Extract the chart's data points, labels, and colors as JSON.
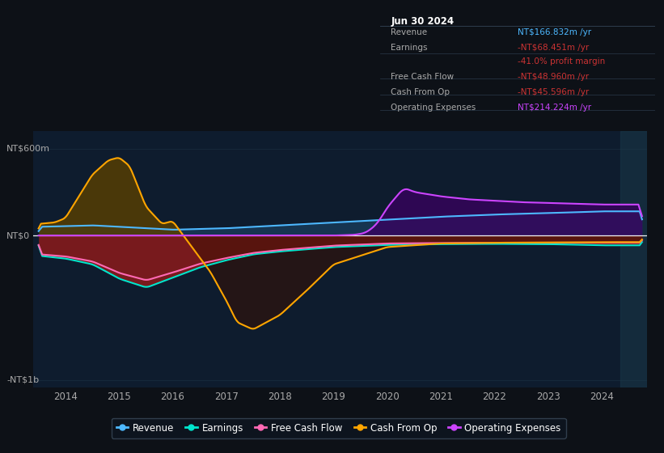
{
  "bg_color": "#0d1117",
  "plot_bg_color": "#0e1c2e",
  "title_date": "Jun 30 2024",
  "info_box_rows": [
    {
      "label": "Revenue",
      "value": "NT$166.832m /yr",
      "value_color": "#4db8ff"
    },
    {
      "label": "Earnings",
      "value": "-NT$68.451m /yr",
      "value_color": "#cc3333"
    },
    {
      "label": "",
      "value": "-41.0% profit margin",
      "value_color": "#cc3333"
    },
    {
      "label": "Free Cash Flow",
      "value": "-NT$48.960m /yr",
      "value_color": "#cc3333"
    },
    {
      "label": "Cash From Op",
      "value": "-NT$45.596m /yr",
      "value_color": "#cc3333"
    },
    {
      "label": "Operating Expenses",
      "value": "NT$214.224m /yr",
      "value_color": "#cc44ff"
    }
  ],
  "ylim": [
    -1050,
    720
  ],
  "ytick_vals": [
    600,
    0,
    -1000
  ],
  "ytick_labels": [
    "NT$600m",
    "NT$0",
    "-NT$1b"
  ],
  "xlim": [
    2013.4,
    2024.85
  ],
  "xtick_vals": [
    2014,
    2015,
    2016,
    2017,
    2018,
    2019,
    2020,
    2021,
    2022,
    2023,
    2024
  ],
  "xtick_labels": [
    "2014",
    "2015",
    "2016",
    "2017",
    "2018",
    "2019",
    "2020",
    "2021",
    "2022",
    "2023",
    "2024"
  ],
  "revenue_color": "#4db8ff",
  "earnings_color": "#00e5cc",
  "fcf_color": "#ff69b4",
  "cashop_color": "#ffa500",
  "opex_color": "#cc44ff",
  "legend": [
    {
      "label": "Revenue",
      "color": "#4db8ff"
    },
    {
      "label": "Earnings",
      "color": "#00e5cc"
    },
    {
      "label": "Free Cash Flow",
      "color": "#ff69b4"
    },
    {
      "label": "Cash From Op",
      "color": "#ffa500"
    },
    {
      "label": "Operating Expenses",
      "color": "#cc44ff"
    }
  ]
}
